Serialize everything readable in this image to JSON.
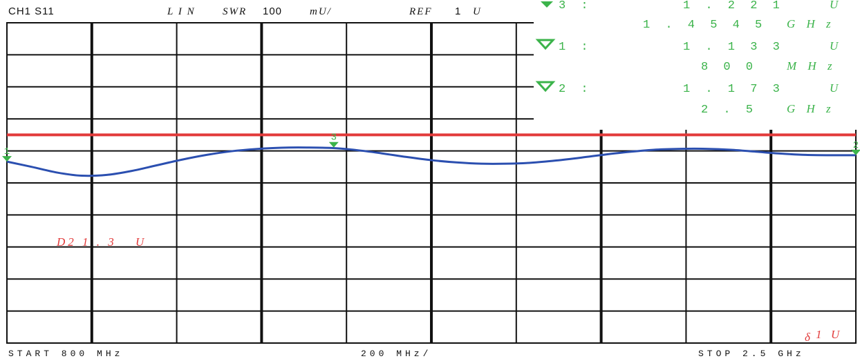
{
  "header": {
    "channel": "CH1 S11",
    "format_label": "L I N",
    "format_name": "SWR",
    "scale_value": "100",
    "scale_unit": "mU/",
    "ref_label": "REF",
    "ref_value": "1",
    "ref_unit": "U"
  },
  "markers": [
    {
      "symbol": "3 :",
      "value": "1 . 2 2 1",
      "unit": "U",
      "freq": "1 . 4 5 4 5",
      "freq_unit": "G H z",
      "active": true
    },
    {
      "symbol": "1 :",
      "value": "1 . 1 3 3",
      "unit": "U",
      "freq": "8 0 0",
      "freq_unit": "M H z",
      "active": false
    },
    {
      "symbol": "2 :",
      "value": "1 . 1 7 3",
      "unit": "U",
      "freq": "2 . 5",
      "freq_unit": "G H z",
      "active": false
    }
  ],
  "footer": {
    "start": "START   800 MHz",
    "span": "200 MHz/",
    "stop": "STOP 2.5 GHz"
  },
  "limit_line": {
    "label": "D2 1 . 3",
    "unit": "U",
    "color": "#e23a3a"
  },
  "delta_label": {
    "symbol": "δ",
    "value": "1",
    "unit": "U"
  },
  "colors": {
    "trace": "#2b4fb0",
    "limit": "#e23a3a",
    "marker": "#3bb34a",
    "grid": "#111111"
  },
  "chart_data": {
    "type": "line",
    "title": "CH1 S11  LIN SWR 100 mU/  REF 1 U",
    "xlabel": "",
    "ylabel": "",
    "xlim": [
      0.8,
      2.5
    ],
    "ylim": [
      0.0,
      2.0
    ],
    "x_unit": "GHz",
    "y_unit": "U",
    "grid": true,
    "series": [
      {
        "name": "S11",
        "x": [
          0.8,
          0.85,
          0.9,
          0.95,
          1.0,
          1.05,
          1.1,
          1.15,
          1.2,
          1.25,
          1.3,
          1.35,
          1.4,
          1.45,
          1.5,
          1.55,
          1.6,
          1.65,
          1.7,
          1.75,
          1.8,
          1.85,
          1.9,
          1.95,
          2.0,
          2.05,
          2.1,
          2.15,
          2.2,
          2.25,
          2.3,
          2.35,
          2.4,
          2.45,
          2.5
        ],
        "values": [
          1.133,
          1.1,
          1.065,
          1.045,
          1.05,
          1.075,
          1.11,
          1.145,
          1.175,
          1.198,
          1.212,
          1.22,
          1.221,
          1.218,
          1.205,
          1.185,
          1.162,
          1.142,
          1.128,
          1.12,
          1.12,
          1.126,
          1.14,
          1.158,
          1.178,
          1.195,
          1.208,
          1.213,
          1.213,
          1.207,
          1.195,
          1.183,
          1.175,
          1.173,
          1.173
        ]
      }
    ],
    "limit": {
      "name": "D2",
      "value": 1.3
    },
    "markers": [
      {
        "id": "1",
        "x": 0.8,
        "y": 1.133
      },
      {
        "id": "2",
        "x": 2.5,
        "y": 1.173
      },
      {
        "id": "3",
        "x": 1.4545,
        "y": 1.221
      }
    ]
  }
}
